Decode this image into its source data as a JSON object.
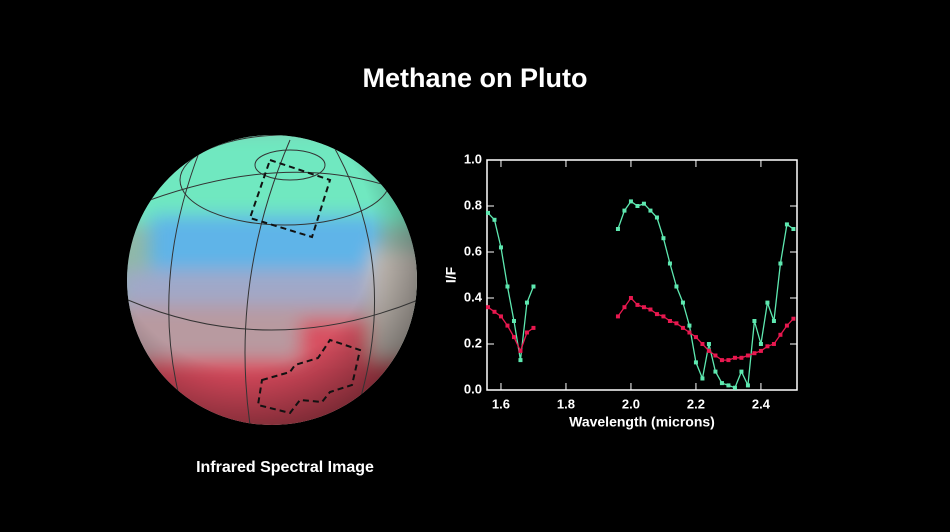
{
  "chart_data": {
    "type": "line",
    "title": "Methane on Pluto",
    "caption": "Infrared Spectral Image",
    "x_label": "Wavelength (microns)",
    "y_label": "I/F",
    "x": [
      1.56,
      1.58,
      1.6,
      1.62,
      1.64,
      1.66,
      1.68,
      1.7,
      1.83,
      1.96,
      1.98,
      2.0,
      2.02,
      2.04,
      2.06,
      2.08,
      2.1,
      2.12,
      2.14,
      2.16,
      2.18,
      2.2,
      2.22,
      2.24,
      2.26,
      2.28,
      2.3,
      2.32,
      2.34,
      2.36,
      2.38,
      2.4,
      2.42,
      2.44,
      2.46,
      2.48,
      2.5
    ],
    "series": [
      {
        "color": "#5ee8b0",
        "values": [
          0.77,
          0.74,
          0.62,
          0.45,
          0.3,
          0.13,
          0.38,
          0.45,
          null,
          0.7,
          0.78,
          0.82,
          0.8,
          0.81,
          0.78,
          0.75,
          0.66,
          0.55,
          0.45,
          0.38,
          0.28,
          0.12,
          0.05,
          0.2,
          0.08,
          0.03,
          0.02,
          0.01,
          0.08,
          0.02,
          0.3,
          0.2,
          0.38,
          0.3,
          0.55,
          0.72,
          0.7
        ]
      },
      {
        "color": "#e8184f",
        "values": [
          0.36,
          0.34,
          0.32,
          0.28,
          0.23,
          0.17,
          0.25,
          0.27,
          null,
          0.32,
          0.36,
          0.4,
          0.37,
          0.36,
          0.35,
          0.33,
          0.32,
          0.3,
          0.29,
          0.27,
          0.25,
          0.23,
          0.2,
          0.17,
          0.15,
          0.13,
          0.13,
          0.14,
          0.14,
          0.15,
          0.16,
          0.17,
          0.19,
          0.2,
          0.24,
          0.28,
          0.31
        ]
      }
    ],
    "xlim": [
      1.557,
      2.511
    ],
    "ylim": [
      0,
      1
    ],
    "xticks": [
      1.6,
      1.8,
      {
        "value": 2,
        "label": "2.0"
      },
      2.2,
      2.4
    ],
    "yticks": [
      {
        "value": 0,
        "label": "0.0"
      },
      0.2,
      0.4,
      0.6,
      0.8,
      {
        "value": 1,
        "label": "1.0"
      }
    ]
  }
}
